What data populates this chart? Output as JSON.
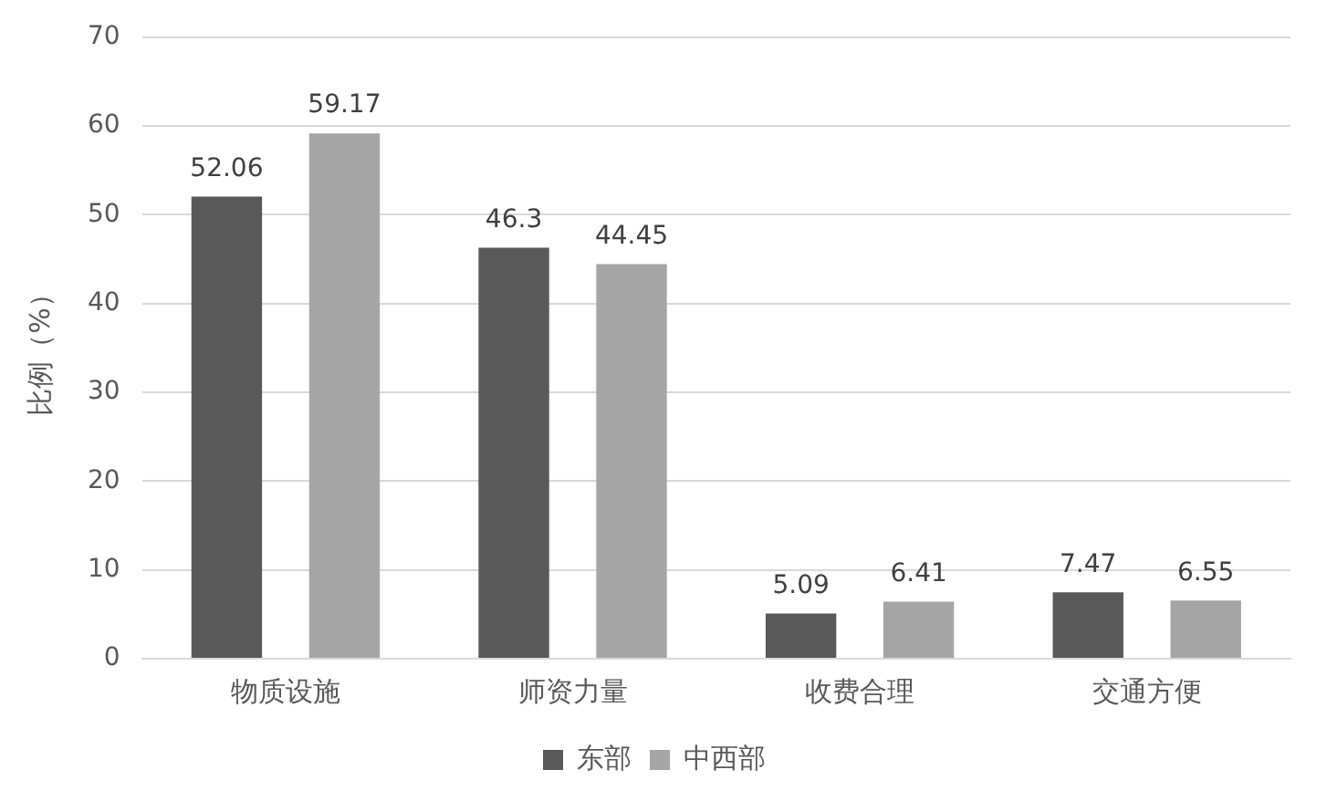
{
  "chart_data": {
    "type": "bar",
    "ylabel": "比例（%）",
    "categories": [
      "物质设施",
      "师资力量",
      "收费合理",
      "交通方便"
    ],
    "series": [
      {
        "name": "东部",
        "color": "#595959",
        "values": [
          52.06,
          46.3,
          5.09,
          7.47
        ]
      },
      {
        "name": "中西部",
        "color": "#a5a5a5",
        "values": [
          59.17,
          44.45,
          6.41,
          6.55
        ]
      }
    ],
    "ylim": [
      0,
      70
    ],
    "yticks": [
      0,
      10,
      20,
      30,
      40,
      50,
      60,
      70
    ],
    "grid": "y",
    "legend": "bottom",
    "data_labels": true
  }
}
